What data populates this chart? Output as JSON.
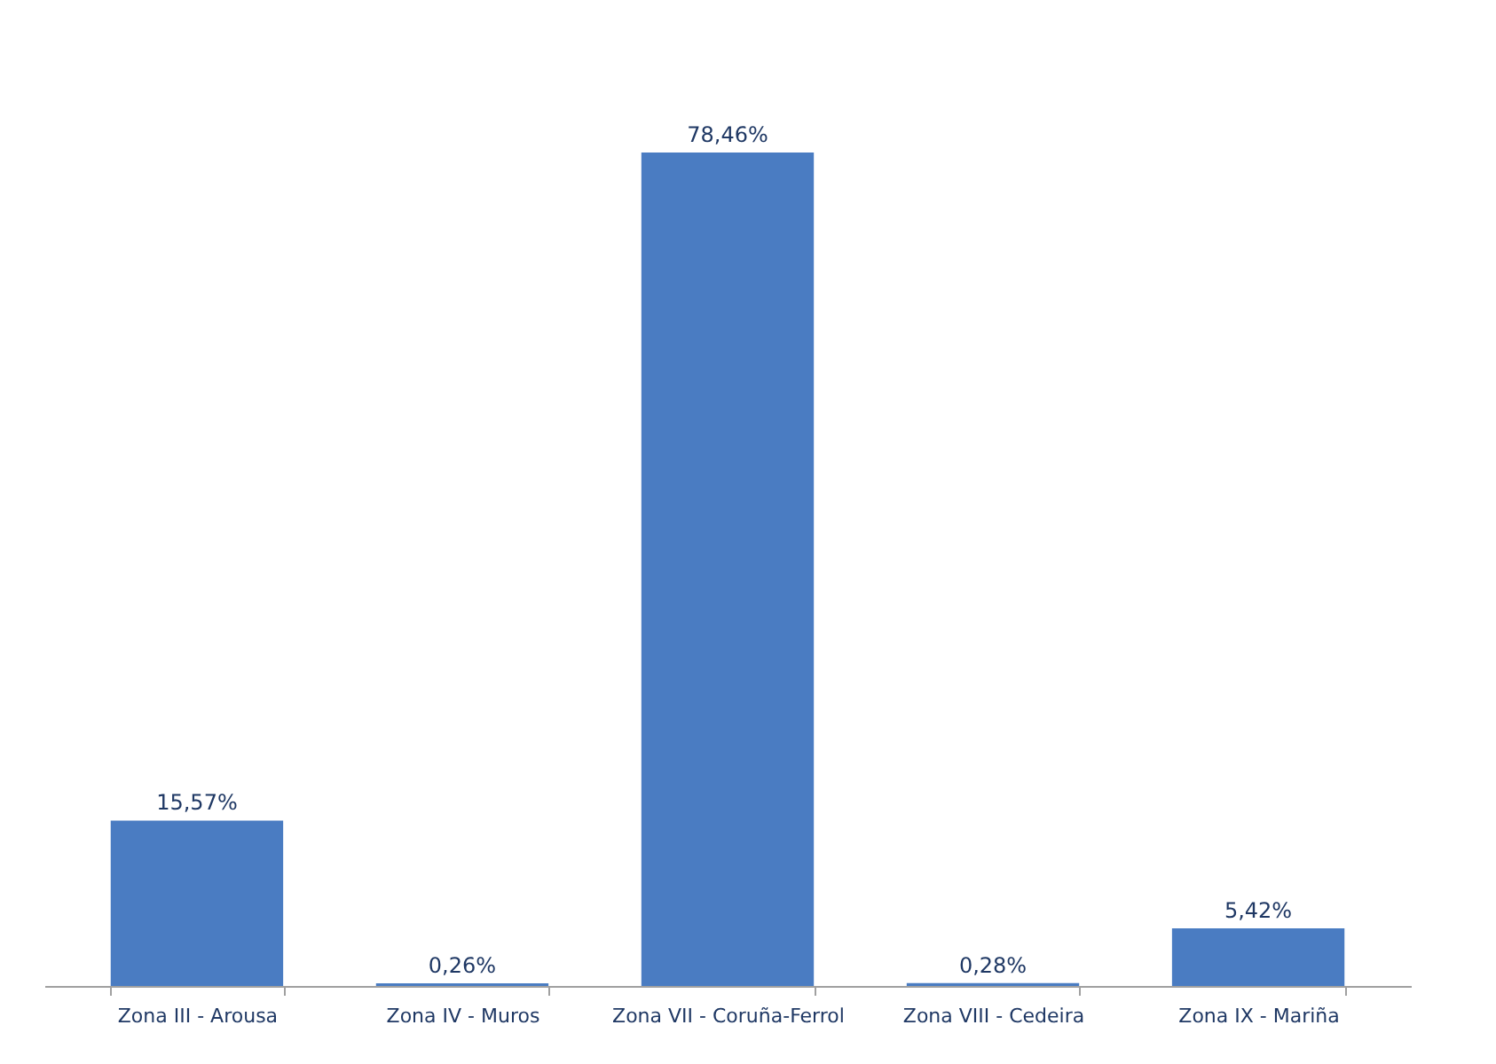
{
  "chart_data": {
    "type": "bar",
    "categories": [
      "Zona III - Arousa",
      "Zona IV - Muros",
      "Zona VII - Coruña-Ferrol",
      "Zona VIII - Cedeira",
      "Zona IX - Mariña"
    ],
    "values": [
      15.57,
      0.26,
      78.46,
      0.28,
      5.42
    ],
    "value_labels": [
      "15,57%",
      "0,26%",
      "78,46%",
      "0,28%",
      "5,42%"
    ],
    "color": "#4a7cc2",
    "grid": false
  }
}
